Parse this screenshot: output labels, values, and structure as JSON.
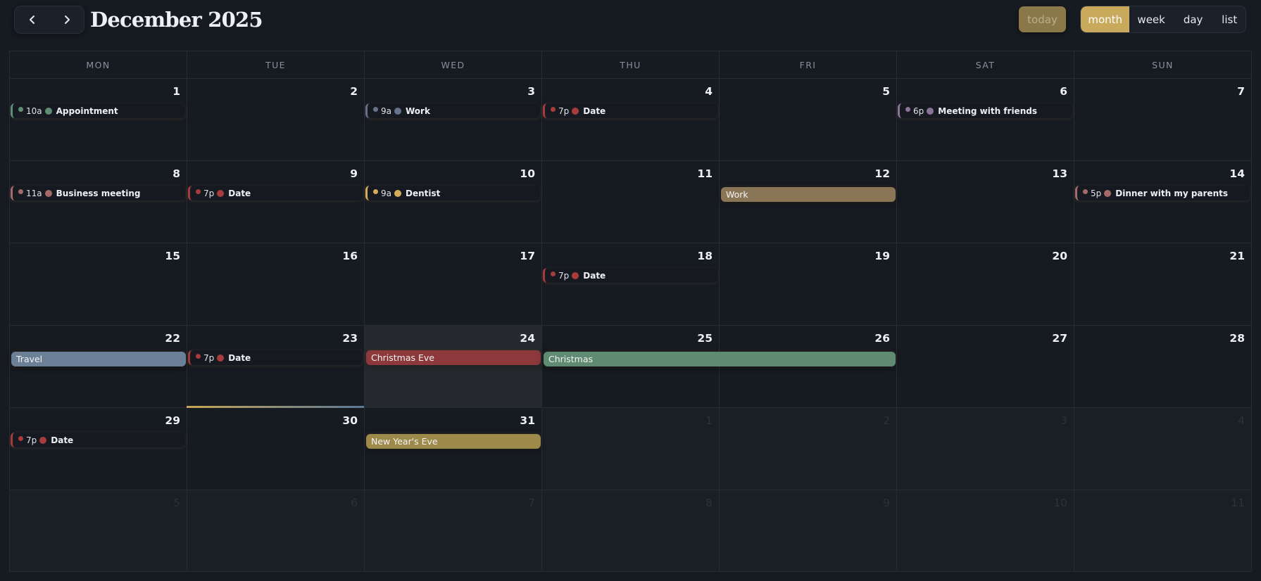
{
  "header": {
    "title": "December 2025",
    "prev_icon": "chevron-left-icon",
    "next_icon": "chevron-right-icon",
    "today_label": "today",
    "views": [
      {
        "label": "month",
        "active": true
      },
      {
        "label": "week",
        "active": false
      },
      {
        "label": "day",
        "active": false
      },
      {
        "label": "list",
        "active": false
      }
    ]
  },
  "weekdays": [
    "MON",
    "TUE",
    "WED",
    "THU",
    "FRI",
    "SAT",
    "SUN"
  ],
  "weeks": [
    [
      {
        "n": "1"
      },
      {
        "n": "2"
      },
      {
        "n": "3"
      },
      {
        "n": "4"
      },
      {
        "n": "5"
      },
      {
        "n": "6"
      },
      {
        "n": "7"
      }
    ],
    [
      {
        "n": "8"
      },
      {
        "n": "9"
      },
      {
        "n": "10"
      },
      {
        "n": "11"
      },
      {
        "n": "12"
      },
      {
        "n": "13"
      },
      {
        "n": "14"
      }
    ],
    [
      {
        "n": "15"
      },
      {
        "n": "16"
      },
      {
        "n": "17"
      },
      {
        "n": "18"
      },
      {
        "n": "19"
      },
      {
        "n": "20"
      },
      {
        "n": "21"
      }
    ],
    [
      {
        "n": "22"
      },
      {
        "n": "23"
      },
      {
        "n": "24",
        "today": true
      },
      {
        "n": "25"
      },
      {
        "n": "26"
      },
      {
        "n": "27"
      },
      {
        "n": "28"
      }
    ],
    [
      {
        "n": "29"
      },
      {
        "n": "30"
      },
      {
        "n": "31"
      },
      {
        "n": "1",
        "other": true
      },
      {
        "n": "2",
        "other": true
      },
      {
        "n": "3",
        "other": true
      },
      {
        "n": "4",
        "other": true
      }
    ],
    [
      {
        "n": "5",
        "other": true
      },
      {
        "n": "6",
        "other": true
      },
      {
        "n": "7",
        "other": true
      },
      {
        "n": "8",
        "other": true
      },
      {
        "n": "9",
        "other": true
      },
      {
        "n": "10",
        "other": true
      },
      {
        "n": "11",
        "other": true
      }
    ]
  ],
  "events": {
    "timed": [
      {
        "week": 0,
        "col": 0,
        "time": "10a",
        "title": "Appointment",
        "color": "#5e8e74"
      },
      {
        "week": 0,
        "col": 2,
        "time": "9a",
        "title": "Work",
        "color": "#66738a"
      },
      {
        "week": 0,
        "col": 3,
        "time": "7p",
        "title": "Date",
        "color": "#a83c3c"
      },
      {
        "week": 0,
        "col": 5,
        "time": "6p",
        "title": "Meeting with friends",
        "color": "#8a7399"
      },
      {
        "week": 1,
        "col": 0,
        "time": "11a",
        "title": "Business meeting",
        "color": "#a46a6a"
      },
      {
        "week": 1,
        "col": 1,
        "time": "7p",
        "title": "Date",
        "color": "#a83c3c"
      },
      {
        "week": 1,
        "col": 2,
        "time": "9a",
        "title": "Dentist",
        "color": "#d4ac5c"
      },
      {
        "week": 1,
        "col": 6,
        "time": "5p",
        "title": "Dinner with my parents",
        "color": "#a46a6a"
      },
      {
        "week": 2,
        "col": 3,
        "time": "7p",
        "title": "Date",
        "color": "#a83c3c"
      },
      {
        "week": 3,
        "col": 1,
        "time": "7p",
        "title": "Date",
        "color": "#a83c3c"
      },
      {
        "week": 4,
        "col": 0,
        "time": "7p",
        "title": "Date",
        "color": "#a83c3c"
      }
    ],
    "allday": [
      {
        "week": 1,
        "col": 4,
        "span": 1,
        "title": "Work",
        "color": "#8a7656"
      },
      {
        "week": 3,
        "col": 0,
        "span": 1,
        "title": "Travel",
        "color": "#6b7f97"
      },
      {
        "week": 3,
        "col": 2,
        "span": 1,
        "title": "Christmas Eve",
        "color": "#8d393b"
      },
      {
        "week": 3,
        "col": 3,
        "span": 2,
        "title": "Christmas",
        "color": "#5f8b72"
      },
      {
        "week": 4,
        "col": 2,
        "span": 1,
        "title": "New Year's Eve",
        "color": "#9d8a4b"
      }
    ]
  },
  "colors": {
    "background": "#161a21",
    "accent": "#c9a95c",
    "today_button": "#8b7849",
    "today_cell": "#262a2f",
    "grid_line": "#262b34"
  }
}
